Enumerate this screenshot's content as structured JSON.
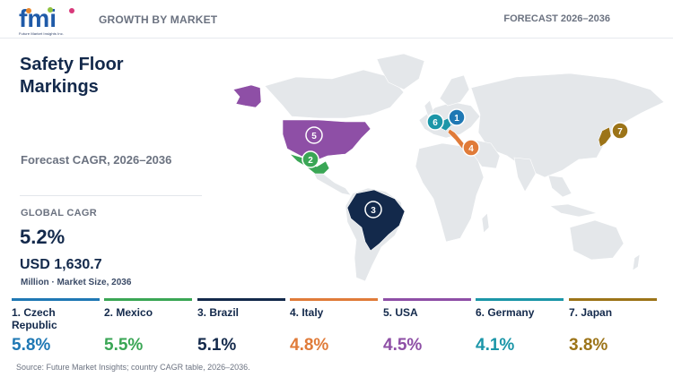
{
  "header": {
    "logo_text": "fmi",
    "logo_tagline": "Future Market Insights Inc.",
    "left_label": "GROWTH BY MARKET",
    "right_label": "FORECAST 2026–2036"
  },
  "panel": {
    "title": "Safety Floor Markings",
    "forecast_label": "Forecast CAGR, 2026–2036",
    "global_cagr_label": "GLOBAL CAGR",
    "global_cagr_value": "5.2%",
    "market_size_value": "USD 1,630.7",
    "market_size_unit": "Million · Market Size, 2036"
  },
  "map": {
    "markers": [
      {
        "rank": "1",
        "country": "Czech Republic",
        "color": "#1f78b4"
      },
      {
        "rank": "2",
        "country": "Mexico",
        "color": "#3aa655"
      },
      {
        "rank": "3",
        "country": "Brazil",
        "color": "#13294b"
      },
      {
        "rank": "4",
        "country": "Italy",
        "color": "#e07b39"
      },
      {
        "rank": "5",
        "country": "USA",
        "color": "#8e4fa6"
      },
      {
        "rank": "6",
        "country": "Germany",
        "color": "#1b96a8"
      },
      {
        "rank": "7",
        "country": "Japan",
        "color": "#9c7418"
      }
    ]
  },
  "countries": [
    {
      "name": "1. Czech Republic",
      "cagr": "5.8%",
      "color": "#1f78b4"
    },
    {
      "name": "2. Mexico",
      "cagr": "5.5%",
      "color": "#3aa655"
    },
    {
      "name": "3. Brazil",
      "cagr": "5.1%",
      "color": "#13294b"
    },
    {
      "name": "4. Italy",
      "cagr": "4.8%",
      "color": "#e07b39"
    },
    {
      "name": "5. USA",
      "cagr": "4.5%",
      "color": "#8e4fa6"
    },
    {
      "name": "6. Germany",
      "cagr": "4.1%",
      "color": "#1b96a8"
    },
    {
      "name": "7. Japan",
      "cagr": "3.8%",
      "color": "#9c7418"
    }
  ],
  "source": "Source: Future Market Insights; country CAGR table, 2026–2036."
}
